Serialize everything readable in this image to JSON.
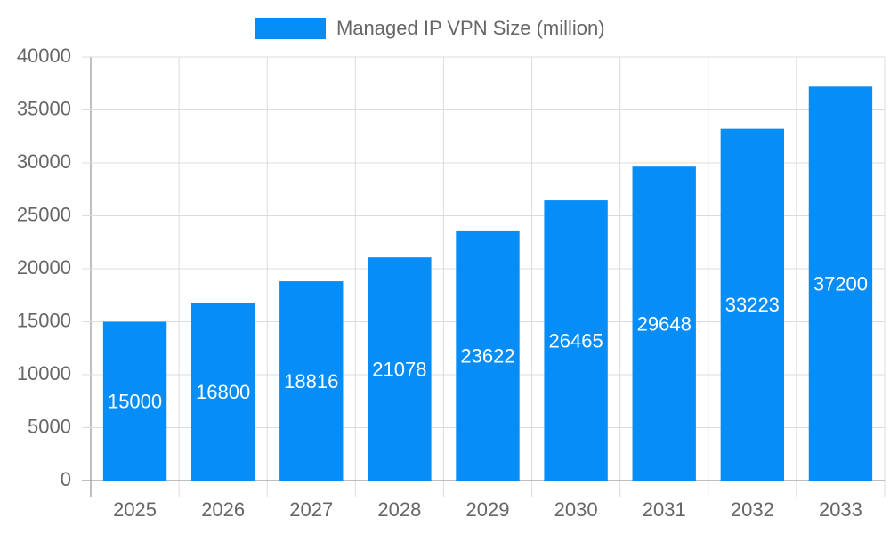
{
  "chart_data": {
    "type": "bar",
    "categories": [
      "2025",
      "2026",
      "2027",
      "2028",
      "2029",
      "2030",
      "2031",
      "2032",
      "2033"
    ],
    "series": [
      {
        "name": "Managed IP VPN Size (million)",
        "color": "#068df8",
        "values": [
          15000,
          16800,
          18816,
          21078,
          23622,
          26465,
          29648,
          33223,
          37200
        ]
      }
    ],
    "ylim": [
      0,
      40000
    ],
    "yticks": [
      0,
      5000,
      10000,
      15000,
      20000,
      25000,
      30000,
      35000,
      40000
    ],
    "grid": true,
    "legend": "top",
    "data_labels": true
  }
}
